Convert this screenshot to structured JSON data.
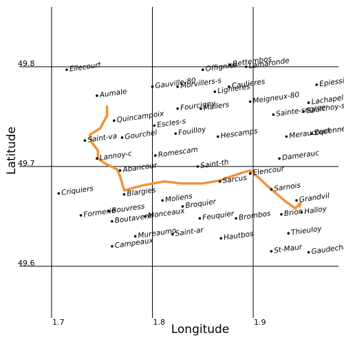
{
  "chart_data": {
    "type": "map",
    "xlabel": "Longitude",
    "ylabel": "Latitude",
    "x_ticks": [
      {
        "value": 1.7,
        "label": "1.7"
      },
      {
        "value": 1.8,
        "label": "1.8"
      },
      {
        "value": 1.9,
        "label": "1.9"
      }
    ],
    "y_ticks": [
      {
        "value": 49.8,
        "label": "49.8"
      },
      {
        "value": 49.7,
        "label": "49.7"
      },
      {
        "value": 49.6,
        "label": "49.6"
      }
    ],
    "xlim": [
      1.65,
      1.95
    ],
    "ylim": [
      49.545,
      49.855
    ],
    "grid": true,
    "route_color": "#f0923a",
    "places": [
      {
        "name": "Ellecourt",
        "lon": 1.715,
        "lat": 49.797
      },
      {
        "name": "Offignies",
        "lon": 1.85,
        "lat": 49.797
      },
      {
        "name": "Bettembos",
        "lon": 1.877,
        "lat": 49.802
      },
      {
        "name": "Lamaronde",
        "lon": 1.893,
        "lat": 49.8
      },
      {
        "name": "Gauville-80",
        "lon": 1.8,
        "lat": 49.78
      },
      {
        "name": "Morvillers-s",
        "lon": 1.825,
        "lat": 49.78
      },
      {
        "name": "Epiessier",
        "lon": 1.963,
        "lat": 49.782
      },
      {
        "name": "Aumale",
        "lon": 1.745,
        "lat": 49.771
      },
      {
        "name": "Lignieres",
        "lon": 1.862,
        "lat": 49.775
      },
      {
        "name": "Caulieres",
        "lon": 1.876,
        "lat": 49.78
      },
      {
        "name": "Meigneux-80",
        "lon": 1.897,
        "lat": 49.765
      },
      {
        "name": "Lachapelle",
        "lon": 1.955,
        "lat": 49.764
      },
      {
        "name": "Fourcigny",
        "lon": 1.825,
        "lat": 49.758
      },
      {
        "name": "Mallers",
        "lon": 1.848,
        "lat": 49.758
      },
      {
        "name": "Sainte-segree",
        "lon": 1.92,
        "lat": 49.752
      },
      {
        "name": "Saulchoy-sou",
        "lon": 1.95,
        "lat": 49.755
      },
      {
        "name": "Quincampoix",
        "lon": 1.762,
        "lat": 49.746
      },
      {
        "name": "Escles-s",
        "lon": 1.802,
        "lat": 49.741
      },
      {
        "name": "Saint-va",
        "lon": 1.733,
        "lat": 49.726
      },
      {
        "name": "Gourchel",
        "lon": 1.77,
        "lat": 49.729
      },
      {
        "name": "Fouilloy",
        "lon": 1.823,
        "lat": 49.733
      },
      {
        "name": "Hescamps",
        "lon": 1.865,
        "lat": 49.73
      },
      {
        "name": "Meraucourt",
        "lon": 1.933,
        "lat": 49.73
      },
      {
        "name": "Equennes",
        "lon": 1.958,
        "lat": 49.733
      },
      {
        "name": "Lannoy-c",
        "lon": 1.745,
        "lat": 49.708
      },
      {
        "name": "Romescam",
        "lon": 1.803,
        "lat": 49.711
      },
      {
        "name": "Damerauc",
        "lon": 1.926,
        "lat": 49.708
      },
      {
        "name": "Abancour",
        "lon": 1.768,
        "lat": 49.696
      },
      {
        "name": "Saint-th",
        "lon": 1.845,
        "lat": 49.7
      },
      {
        "name": "Elencour",
        "lon": 1.897,
        "lat": 49.693
      },
      {
        "name": "Sarcus",
        "lon": 1.867,
        "lat": 49.685
      },
      {
        "name": "Criquiers",
        "lon": 1.707,
        "lat": 49.673
      },
      {
        "name": "Blargies",
        "lon": 1.772,
        "lat": 49.672
      },
      {
        "name": "Sarnois",
        "lon": 1.918,
        "lat": 49.677
      },
      {
        "name": "Moliens",
        "lon": 1.81,
        "lat": 49.666
      },
      {
        "name": "Grandvil",
        "lon": 1.943,
        "lat": 49.666
      },
      {
        "name": "Broquier",
        "lon": 1.83,
        "lat": 49.66
      },
      {
        "name": "Bouvress",
        "lon": 1.757,
        "lat": 49.655
      },
      {
        "name": "Formerie",
        "lon": 1.729,
        "lat": 49.651
      },
      {
        "name": "Halloy",
        "lon": 1.948,
        "lat": 49.654
      },
      {
        "name": "Brion",
        "lon": 1.928,
        "lat": 49.652
      },
      {
        "name": "Monceaux",
        "lon": 1.793,
        "lat": 49.65
      },
      {
        "name": "Boutavent",
        "lon": 1.76,
        "lat": 49.645
      },
      {
        "name": "Feuquier",
        "lon": 1.847,
        "lat": 49.648
      },
      {
        "name": "Brombos",
        "lon": 1.883,
        "lat": 49.648
      },
      {
        "name": "Thieuloy",
        "lon": 1.935,
        "lat": 49.633
      },
      {
        "name": "Saint-ar",
        "lon": 1.82,
        "lat": 49.632
      },
      {
        "name": "Mureaumo",
        "lon": 1.783,
        "lat": 49.63
      },
      {
        "name": "Campeaux",
        "lon": 1.76,
        "lat": 49.62
      },
      {
        "name": "Hautbos",
        "lon": 1.868,
        "lat": 49.628
      },
      {
        "name": "St-Maur",
        "lon": 1.918,
        "lat": 49.615
      },
      {
        "name": "Gaudechart",
        "lon": 1.955,
        "lat": 49.614
      }
    ],
    "route": [
      [
        1.755,
        49.76
      ],
      [
        1.755,
        49.751
      ],
      [
        1.748,
        49.738
      ],
      [
        1.738,
        49.732
      ],
      [
        1.74,
        49.724
      ],
      [
        1.746,
        49.716
      ],
      [
        1.746,
        49.708
      ],
      [
        1.753,
        49.703
      ],
      [
        1.765,
        49.697
      ],
      [
        1.768,
        49.69
      ],
      [
        1.772,
        49.676
      ],
      [
        1.79,
        49.681
      ],
      [
        1.812,
        49.685
      ],
      [
        1.828,
        49.683
      ],
      [
        1.85,
        49.683
      ],
      [
        1.867,
        49.686
      ],
      [
        1.878,
        49.69
      ],
      [
        1.89,
        49.694
      ],
      [
        1.897,
        49.696
      ],
      [
        1.904,
        49.69
      ],
      [
        1.918,
        49.677
      ],
      [
        1.932,
        49.665
      ],
      [
        1.942,
        49.658
      ],
      [
        1.947,
        49.664
      ],
      [
        1.946,
        49.66
      ]
    ]
  }
}
